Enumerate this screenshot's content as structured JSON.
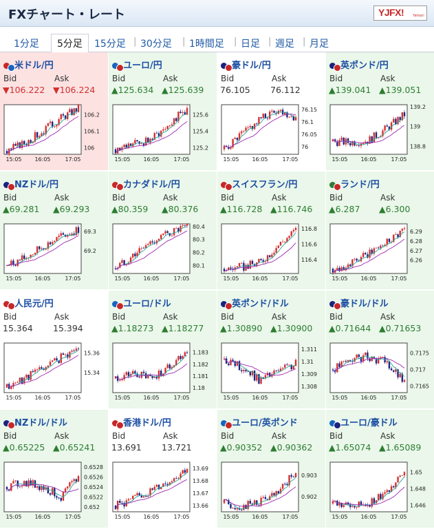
{
  "header": {
    "title": "FXチャート・レート",
    "logo_text": "YJFX!",
    "logo_sub": "Yahoo!"
  },
  "tabs": [
    {
      "label": "1分足",
      "active": false
    },
    {
      "label": "5分足",
      "active": true
    },
    {
      "label": "15分足",
      "active": false
    },
    {
      "label": "30分足",
      "active": false
    },
    {
      "label": "1時間足",
      "active": false
    },
    {
      "label": "日足",
      "active": false
    },
    {
      "label": "週足",
      "active": false
    },
    {
      "label": "月足",
      "active": false
    }
  ],
  "labels": {
    "bid": "Bid",
    "ask": "Ask"
  },
  "x_ticks": [
    "15:05",
    "16:05",
    "17:05"
  ],
  "colors": {
    "up_candle": "#d32f2f",
    "down_candle": "#1a237e",
    "ma_fast": "#26a69a",
    "ma_slow": "#9c27b0",
    "up_text": "#2e7d32",
    "down_text": "#d32f2f"
  },
  "cards": [
    {
      "pair": "米ドル/円",
      "bg": "red",
      "flag": [
        "#c62828",
        "#1565c0"
      ],
      "bid": "▼106.222",
      "ask": "▼106.224",
      "dir": "down",
      "y_ticks": [
        "106.2",
        "106.1",
        "106"
      ],
      "trend": [
        105.98,
        106.03,
        106.1,
        106.18,
        106.24
      ],
      "ylim": [
        105.96,
        106.26
      ]
    },
    {
      "pair": "ユーロ/円",
      "bg": "green",
      "flag": [
        "#1565c0",
        "#c62828"
      ],
      "bid": "▲125.634",
      "ask": "▲125.639",
      "dir": "up",
      "y_ticks": [
        "125.6",
        "125.4",
        "125.2"
      ],
      "trend": [
        125.18,
        125.24,
        125.3,
        125.5,
        125.66
      ],
      "ylim": [
        125.12,
        125.72
      ]
    },
    {
      "pair": "豪ドル/円",
      "bg": "white",
      "flag": [
        "#1a237e",
        "#c62828"
      ],
      "bid": "76.105",
      "ask": "76.112",
      "dir": "flat",
      "y_ticks": [
        "76.15",
        "76.1",
        "76.05",
        "76"
      ],
      "trend": [
        75.99,
        76.05,
        76.11,
        76.15,
        76.12
      ],
      "ylim": [
        75.97,
        76.17
      ]
    },
    {
      "pair": "英ポンド/円",
      "bg": "green",
      "flag": [
        "#1a237e",
        "#c62828"
      ],
      "bid": "▲139.041",
      "ask": "▲139.051",
      "dir": "up",
      "y_ticks": [
        "139.2",
        "139",
        "138.8"
      ],
      "trend": [
        138.85,
        138.84,
        138.86,
        138.98,
        139.12
      ],
      "ylim": [
        138.72,
        139.22
      ]
    },
    {
      "pair": "NZドル/円",
      "bg": "green",
      "flag": [
        "#1a237e",
        "#c62828"
      ],
      "bid": "▲69.281",
      "ask": "▲69.293",
      "dir": "up",
      "y_ticks": [
        "69.3",
        "69.2"
      ],
      "trend": [
        69.12,
        69.16,
        69.22,
        69.27,
        69.31
      ],
      "ylim": [
        69.08,
        69.34
      ]
    },
    {
      "pair": "カナダドル/円",
      "bg": "green",
      "flag": [
        "#c62828",
        "#c62828"
      ],
      "bid": "▲80.359",
      "ask": "▲80.376",
      "dir": "up",
      "y_ticks": [
        "80.4",
        "80.3",
        "80.2",
        "80.1"
      ],
      "trend": [
        80.08,
        80.18,
        80.28,
        80.35,
        80.39
      ],
      "ylim": [
        80.04,
        80.42
      ]
    },
    {
      "pair": "スイスフラン/円",
      "bg": "green",
      "flag": [
        "#c62828",
        "#c62828"
      ],
      "bid": "▲116.728",
      "ask": "▲116.746",
      "dir": "up",
      "y_ticks": [
        "116.8",
        "116.6",
        "116.4"
      ],
      "trend": [
        116.28,
        116.3,
        116.36,
        116.58,
        116.78
      ],
      "ylim": [
        116.22,
        116.86
      ]
    },
    {
      "pair": "ランド/円",
      "bg": "green",
      "flag": [
        "#2e7d32",
        "#c62828"
      ],
      "bid": "▲6.287",
      "ask": "▲6.300",
      "dir": "up",
      "y_ticks": [
        "6.29",
        "6.28",
        "6.27",
        "6.26"
      ],
      "trend": [
        6.251,
        6.256,
        6.266,
        6.28,
        6.293
      ],
      "ylim": [
        6.246,
        6.298
      ]
    },
    {
      "pair": "人民元/円",
      "bg": "white",
      "flag": [
        "#c62828",
        "#c62828"
      ],
      "bid": "15.364",
      "ask": "15.394",
      "dir": "flat",
      "y_ticks": [
        "15.36",
        "15.34"
      ],
      "trend": [
        15.325,
        15.335,
        15.345,
        15.355,
        15.365
      ],
      "ylim": [
        15.32,
        15.37
      ]
    },
    {
      "pair": "ユーロ/ドル",
      "bg": "green",
      "flag": [
        "#1565c0",
        "#c62828"
      ],
      "bid": "▲1.18273",
      "ask": "▲1.18277",
      "dir": "up",
      "y_ticks": [
        "1.183",
        "1.182",
        "1.181",
        "1.18"
      ],
      "trend": [
        1.1808,
        1.1812,
        1.1808,
        1.1818,
        1.1832
      ],
      "ylim": [
        1.1796,
        1.1838
      ]
    },
    {
      "pair": "英ポンド/ドル",
      "bg": "green",
      "flag": [
        "#1a237e",
        "#c62828"
      ],
      "bid": "▲1.30890",
      "ask": "▲1.30900",
      "dir": "up",
      "y_ticks": [
        "1.311",
        "1.31",
        "1.309",
        "1.308"
      ],
      "trend": [
        1.3102,
        1.3095,
        1.3085,
        1.3092,
        1.3098
      ],
      "ylim": [
        1.3075,
        1.3115
      ]
    },
    {
      "pair": "豪ドル/ドル",
      "bg": "green",
      "flag": [
        "#1a237e",
        "#c62828"
      ],
      "bid": "▲0.71644",
      "ask": "▲0.71653",
      "dir": "up",
      "y_ticks": [
        "0.7175",
        "0.717",
        "0.7165"
      ],
      "trend": [
        0.717,
        0.7173,
        0.7174,
        0.7172,
        0.7166
      ],
      "ylim": [
        0.7163,
        0.7178
      ]
    },
    {
      "pair": "NZドル/ドル",
      "bg": "green",
      "flag": [
        "#1a237e",
        "#c62828"
      ],
      "bid": "▲0.65225",
      "ask": "▲0.65241",
      "dir": "up",
      "y_ticks": [
        "0.6528",
        "0.6526",
        "0.6524",
        "0.6522",
        "0.652"
      ],
      "trend": [
        0.6524,
        0.6525,
        0.6524,
        0.6522,
        0.6526
      ],
      "ylim": [
        0.6519,
        0.6529
      ]
    },
    {
      "pair": "香港ドル/円",
      "bg": "white",
      "flag": [
        "#c62828",
        "#c62828"
      ],
      "bid": "13.691",
      "ask": "13.721",
      "dir": "flat",
      "y_ticks": [
        "13.69",
        "13.68",
        "13.67",
        "13.66"
      ],
      "trend": [
        13.66,
        13.665,
        13.672,
        13.68,
        13.69
      ],
      "ylim": [
        13.655,
        13.695
      ]
    },
    {
      "pair": "ユーロ/英ポンド",
      "bg": "green",
      "flag": [
        "#1565c0",
        "#c62828"
      ],
      "bid": "▲0.90352",
      "ask": "▲0.90362",
      "dir": "up",
      "y_ticks": [
        "0.903",
        "0.902"
      ],
      "trend": [
        0.9017,
        0.9015,
        0.9018,
        0.9021,
        0.9032
      ],
      "ylim": [
        0.9013,
        0.9036
      ]
    },
    {
      "pair": "ユーロ/豪ドル",
      "bg": "green",
      "flag": [
        "#1565c0",
        "#1a237e"
      ],
      "bid": "▲1.65074",
      "ask": "▲1.65089",
      "dir": "up",
      "y_ticks": [
        "1.65",
        "1.648",
        "1.646"
      ],
      "trend": [
        1.6462,
        1.6458,
        1.6462,
        1.6474,
        1.6505
      ],
      "ylim": [
        1.6452,
        1.6512
      ]
    }
  ]
}
